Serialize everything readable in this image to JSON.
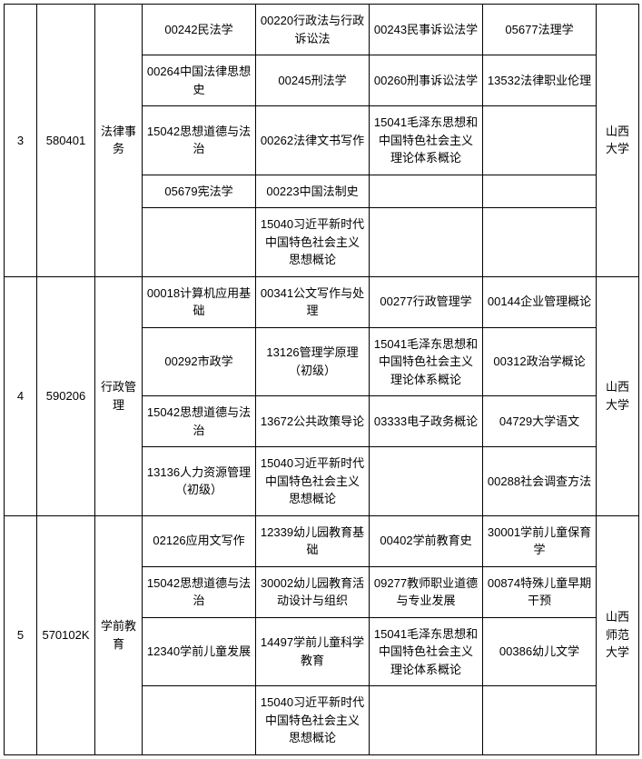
{
  "table": {
    "columns": {
      "idx_width": 36,
      "code_width": 64,
      "name_width": 52,
      "course_width": 125,
      "school_width": 47
    },
    "text_color": "#000000",
    "border_color": "#000000",
    "background_color": "#ffffff",
    "font_size": 13,
    "sections": [
      {
        "idx": "3",
        "code": "580401",
        "name": "法律事务",
        "school": "山西大学",
        "rows": [
          [
            "00242民法学",
            "00220行政法与行政诉讼法",
            "00243民事诉讼法学",
            "05677法理学"
          ],
          [
            "00264中国法律思想史",
            "00245刑法学",
            "00260刑事诉讼法学",
            "13532法律职业伦理"
          ],
          [
            "15042思想道德与法治",
            "00262法律文书写作",
            "15041毛泽东思想和中国特色社会主义理论体系概论",
            ""
          ],
          [
            "05679宪法学",
            "00223中国法制史",
            "",
            ""
          ],
          [
            "",
            "15040习近平新时代中国特色社会主义思想概论",
            "",
            ""
          ]
        ]
      },
      {
        "idx": "4",
        "code": "590206",
        "name": "行政管理",
        "school": "山西大学",
        "rows": [
          [
            "00018计算机应用基础",
            "00341公文写作与处理",
            "00277行政管理学",
            "00144企业管理概论"
          ],
          [
            "00292市政学",
            "13126管理学原理（初级）",
            "15041毛泽东思想和中国特色社会主义理论体系概论",
            "00312政治学概论"
          ],
          [
            "15042思想道德与法治",
            "13672公共政策导论",
            "03333电子政务概论",
            "04729大学语文"
          ],
          [
            "13136人力资源管理（初级）",
            "15040习近平新时代中国特色社会主义思想概论",
            "",
            "00288社会调查方法"
          ]
        ]
      },
      {
        "idx": "5",
        "code": "570102K",
        "name": "学前教育",
        "school": "山西师范大学",
        "rows": [
          [
            "02126应用文写作",
            "12339幼儿园教育基础",
            "00402学前教育史",
            "30001学前儿童保育学"
          ],
          [
            "15042思想道德与法治",
            "30002幼儿园教育活动设计与组织",
            "09277教师职业道德与专业发展",
            "00874特殊儿童早期干预"
          ],
          [
            "12340学前儿童发展",
            "14497学前儿童科学教育",
            "15041毛泽东思想和中国特色社会主义理论体系概论",
            "00386幼儿文学"
          ],
          [
            "",
            "15040习近平新时代中国特色社会主义思想概论",
            "",
            ""
          ]
        ]
      }
    ]
  }
}
